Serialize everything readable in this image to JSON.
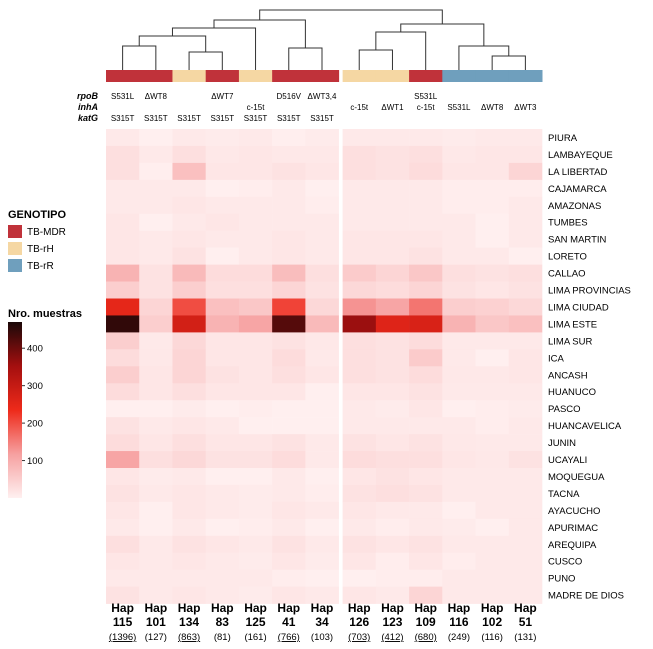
{
  "chart_data": {
    "type": "heatmap",
    "gene_labels": [
      "rpoB",
      "inhA",
      "katG"
    ],
    "columns": [
      {
        "hap": "Hap",
        "id": "115",
        "count": "(1396)",
        "underline": true,
        "genotype": "TB-MDR",
        "rpoB": "S531L",
        "inhA": "",
        "katG": "S315T"
      },
      {
        "hap": "Hap",
        "id": "101",
        "count": "(127)",
        "underline": false,
        "genotype": "TB-MDR",
        "rpoB": "ΔWT8",
        "inhA": "",
        "katG": "S315T"
      },
      {
        "hap": "Hap",
        "id": "134",
        "count": "(863)",
        "underline": true,
        "genotype": "TB-rH",
        "rpoB": "",
        "inhA": "",
        "katG": "S315T"
      },
      {
        "hap": "Hap",
        "id": "83",
        "count": "(81)",
        "underline": false,
        "genotype": "TB-MDR",
        "rpoB": "ΔWT7",
        "inhA": "",
        "katG": "S315T"
      },
      {
        "hap": "Hap",
        "id": "125",
        "count": "(161)",
        "underline": false,
        "genotype": "TB-rH",
        "rpoB": "",
        "inhA": "c-15t",
        "katG": "S315T"
      },
      {
        "hap": "Hap",
        "id": "41",
        "count": "(766)",
        "underline": true,
        "genotype": "TB-MDR",
        "rpoB": "D516V",
        "inhA": "",
        "katG": "S315T"
      },
      {
        "hap": "Hap",
        "id": "34",
        "count": "(103)",
        "underline": false,
        "genotype": "TB-MDR",
        "rpoB": "ΔWT3,4",
        "inhA": "",
        "katG": "S315T"
      },
      {
        "hap": "Hap",
        "id": "126",
        "count": "(703)",
        "underline": true,
        "genotype": "TB-rH",
        "rpoB": "",
        "inhA": "c-15t",
        "katG": ""
      },
      {
        "hap": "Hap",
        "id": "123",
        "count": "(412)",
        "underline": true,
        "genotype": "TB-rH",
        "rpoB": "",
        "inhA": "ΔWT1",
        "katG": ""
      },
      {
        "hap": "Hap",
        "id": "109",
        "count": "(680)",
        "underline": true,
        "genotype": "TB-MDR",
        "rpoB": "S531L",
        "inhA": "c-15t",
        "katG": ""
      },
      {
        "hap": "Hap",
        "id": "116",
        "count": "(249)",
        "underline": false,
        "genotype": "TB-rR",
        "rpoB": "",
        "inhA": "S531L",
        "katG": ""
      },
      {
        "hap": "Hap",
        "id": "102",
        "count": "(116)",
        "underline": false,
        "genotype": "TB-rR",
        "rpoB": "",
        "inhA": "ΔWT8",
        "katG": ""
      },
      {
        "hap": "Hap",
        "id": "51",
        "count": "(131)",
        "underline": false,
        "genotype": "TB-rR",
        "rpoB": "",
        "inhA": "ΔWT3",
        "katG": ""
      }
    ],
    "rows": [
      "PIURA",
      "LAMBAYEQUE",
      "LA LIBERTAD",
      "CAJAMARCA",
      "AMAZONAS",
      "TUMBES",
      "SAN MARTIN",
      "LORETO",
      "CALLAO",
      "LIMA PROVINCIAS",
      "LIMA CIUDAD",
      "LIMA ESTE",
      "LIMA SUR",
      "ICA",
      "ANCASH",
      "HUANUCO",
      "PASCO",
      "HUANCAVELICA",
      "JUNIN",
      "UCAYALI",
      "MOQUEGUA",
      "TACNA",
      "AYACUCHO",
      "APURIMAC",
      "AREQUIPA",
      "CUSCO",
      "PUNO",
      "MADRE DE DIOS"
    ],
    "values": [
      [
        10,
        2,
        10,
        8,
        10,
        3,
        8,
        10,
        10,
        10,
        8,
        10,
        10
      ],
      [
        25,
        10,
        25,
        12,
        15,
        12,
        12,
        25,
        20,
        25,
        12,
        15,
        15
      ],
      [
        25,
        3,
        70,
        15,
        15,
        20,
        15,
        25,
        20,
        30,
        15,
        15,
        40
      ],
      [
        10,
        10,
        10,
        2,
        5,
        10,
        2,
        10,
        10,
        10,
        5,
        5,
        5
      ],
      [
        10,
        10,
        15,
        10,
        10,
        10,
        5,
        10,
        10,
        10,
        5,
        5,
        10
      ],
      [
        15,
        2,
        10,
        15,
        10,
        10,
        10,
        10,
        10,
        10,
        10,
        2,
        10
      ],
      [
        15,
        10,
        15,
        10,
        10,
        15,
        10,
        15,
        15,
        15,
        10,
        2,
        10
      ],
      [
        15,
        10,
        20,
        2,
        10,
        15,
        10,
        15,
        15,
        20,
        10,
        10,
        2
      ],
      [
        90,
        20,
        80,
        30,
        30,
        75,
        25,
        55,
        40,
        60,
        25,
        20,
        25
      ],
      [
        50,
        20,
        50,
        25,
        25,
        40,
        20,
        35,
        30,
        40,
        20,
        15,
        20
      ],
      [
        250,
        40,
        200,
        70,
        60,
        210,
        35,
        130,
        110,
        160,
        50,
        45,
        35
      ],
      [
        450,
        50,
        280,
        90,
        110,
        420,
        80,
        360,
        260,
        270,
        90,
        60,
        70
      ],
      [
        50,
        10,
        35,
        15,
        15,
        20,
        12,
        25,
        20,
        30,
        10,
        10,
        10
      ],
      [
        30,
        12,
        40,
        15,
        15,
        30,
        10,
        25,
        20,
        55,
        10,
        2,
        15
      ],
      [
        50,
        15,
        40,
        20,
        15,
        25,
        15,
        25,
        20,
        30,
        12,
        12,
        15
      ],
      [
        30,
        15,
        25,
        15,
        15,
        15,
        2,
        15,
        15,
        20,
        10,
        10,
        10
      ],
      [
        2,
        2,
        8,
        2,
        5,
        2,
        2,
        10,
        8,
        15,
        2,
        5,
        8
      ],
      [
        20,
        10,
        15,
        10,
        2,
        2,
        2,
        10,
        10,
        10,
        10,
        5,
        10
      ],
      [
        30,
        15,
        25,
        15,
        15,
        20,
        10,
        20,
        15,
        20,
        12,
        10,
        10
      ],
      [
        110,
        25,
        35,
        20,
        20,
        30,
        10,
        30,
        25,
        25,
        15,
        12,
        20
      ],
      [
        15,
        8,
        10,
        2,
        2,
        10,
        2,
        15,
        20,
        15,
        10,
        10,
        10
      ],
      [
        20,
        10,
        15,
        10,
        8,
        10,
        5,
        20,
        25,
        20,
        10,
        10,
        10
      ],
      [
        15,
        2,
        15,
        10,
        8,
        15,
        10,
        15,
        10,
        10,
        2,
        10,
        10
      ],
      [
        10,
        2,
        10,
        2,
        5,
        10,
        2,
        10,
        5,
        10,
        8,
        2,
        10
      ],
      [
        25,
        10,
        20,
        15,
        10,
        20,
        10,
        20,
        15,
        20,
        10,
        10,
        10
      ],
      [
        15,
        10,
        15,
        10,
        8,
        15,
        8,
        15,
        5,
        15,
        5,
        10,
        10
      ],
      [
        10,
        10,
        10,
        10,
        10,
        5,
        2,
        2,
        5,
        5,
        10,
        10,
        10
      ],
      [
        20,
        10,
        15,
        10,
        8,
        15,
        10,
        15,
        10,
        40,
        10,
        10,
        10
      ]
    ],
    "colorbar": {
      "title": "Nro. muestras",
      "min": 0,
      "max": 470,
      "ticks": [
        100,
        200,
        300,
        400
      ],
      "stops": [
        "#fff0f0",
        "#f6a0a0",
        "#ee2a1a",
        "#a40f0f",
        "#1a0808"
      ]
    },
    "legend": {
      "title": "GENOTIPO",
      "items": [
        {
          "label": "TB-MDR",
          "color": "#c0323a"
        },
        {
          "label": "TB-rH",
          "color": "#f5d7a3"
        },
        {
          "label": "TB-rR",
          "color": "#6f9fbd"
        }
      ]
    },
    "dendrogram_color": "#333333",
    "split_after_column": 7
  }
}
